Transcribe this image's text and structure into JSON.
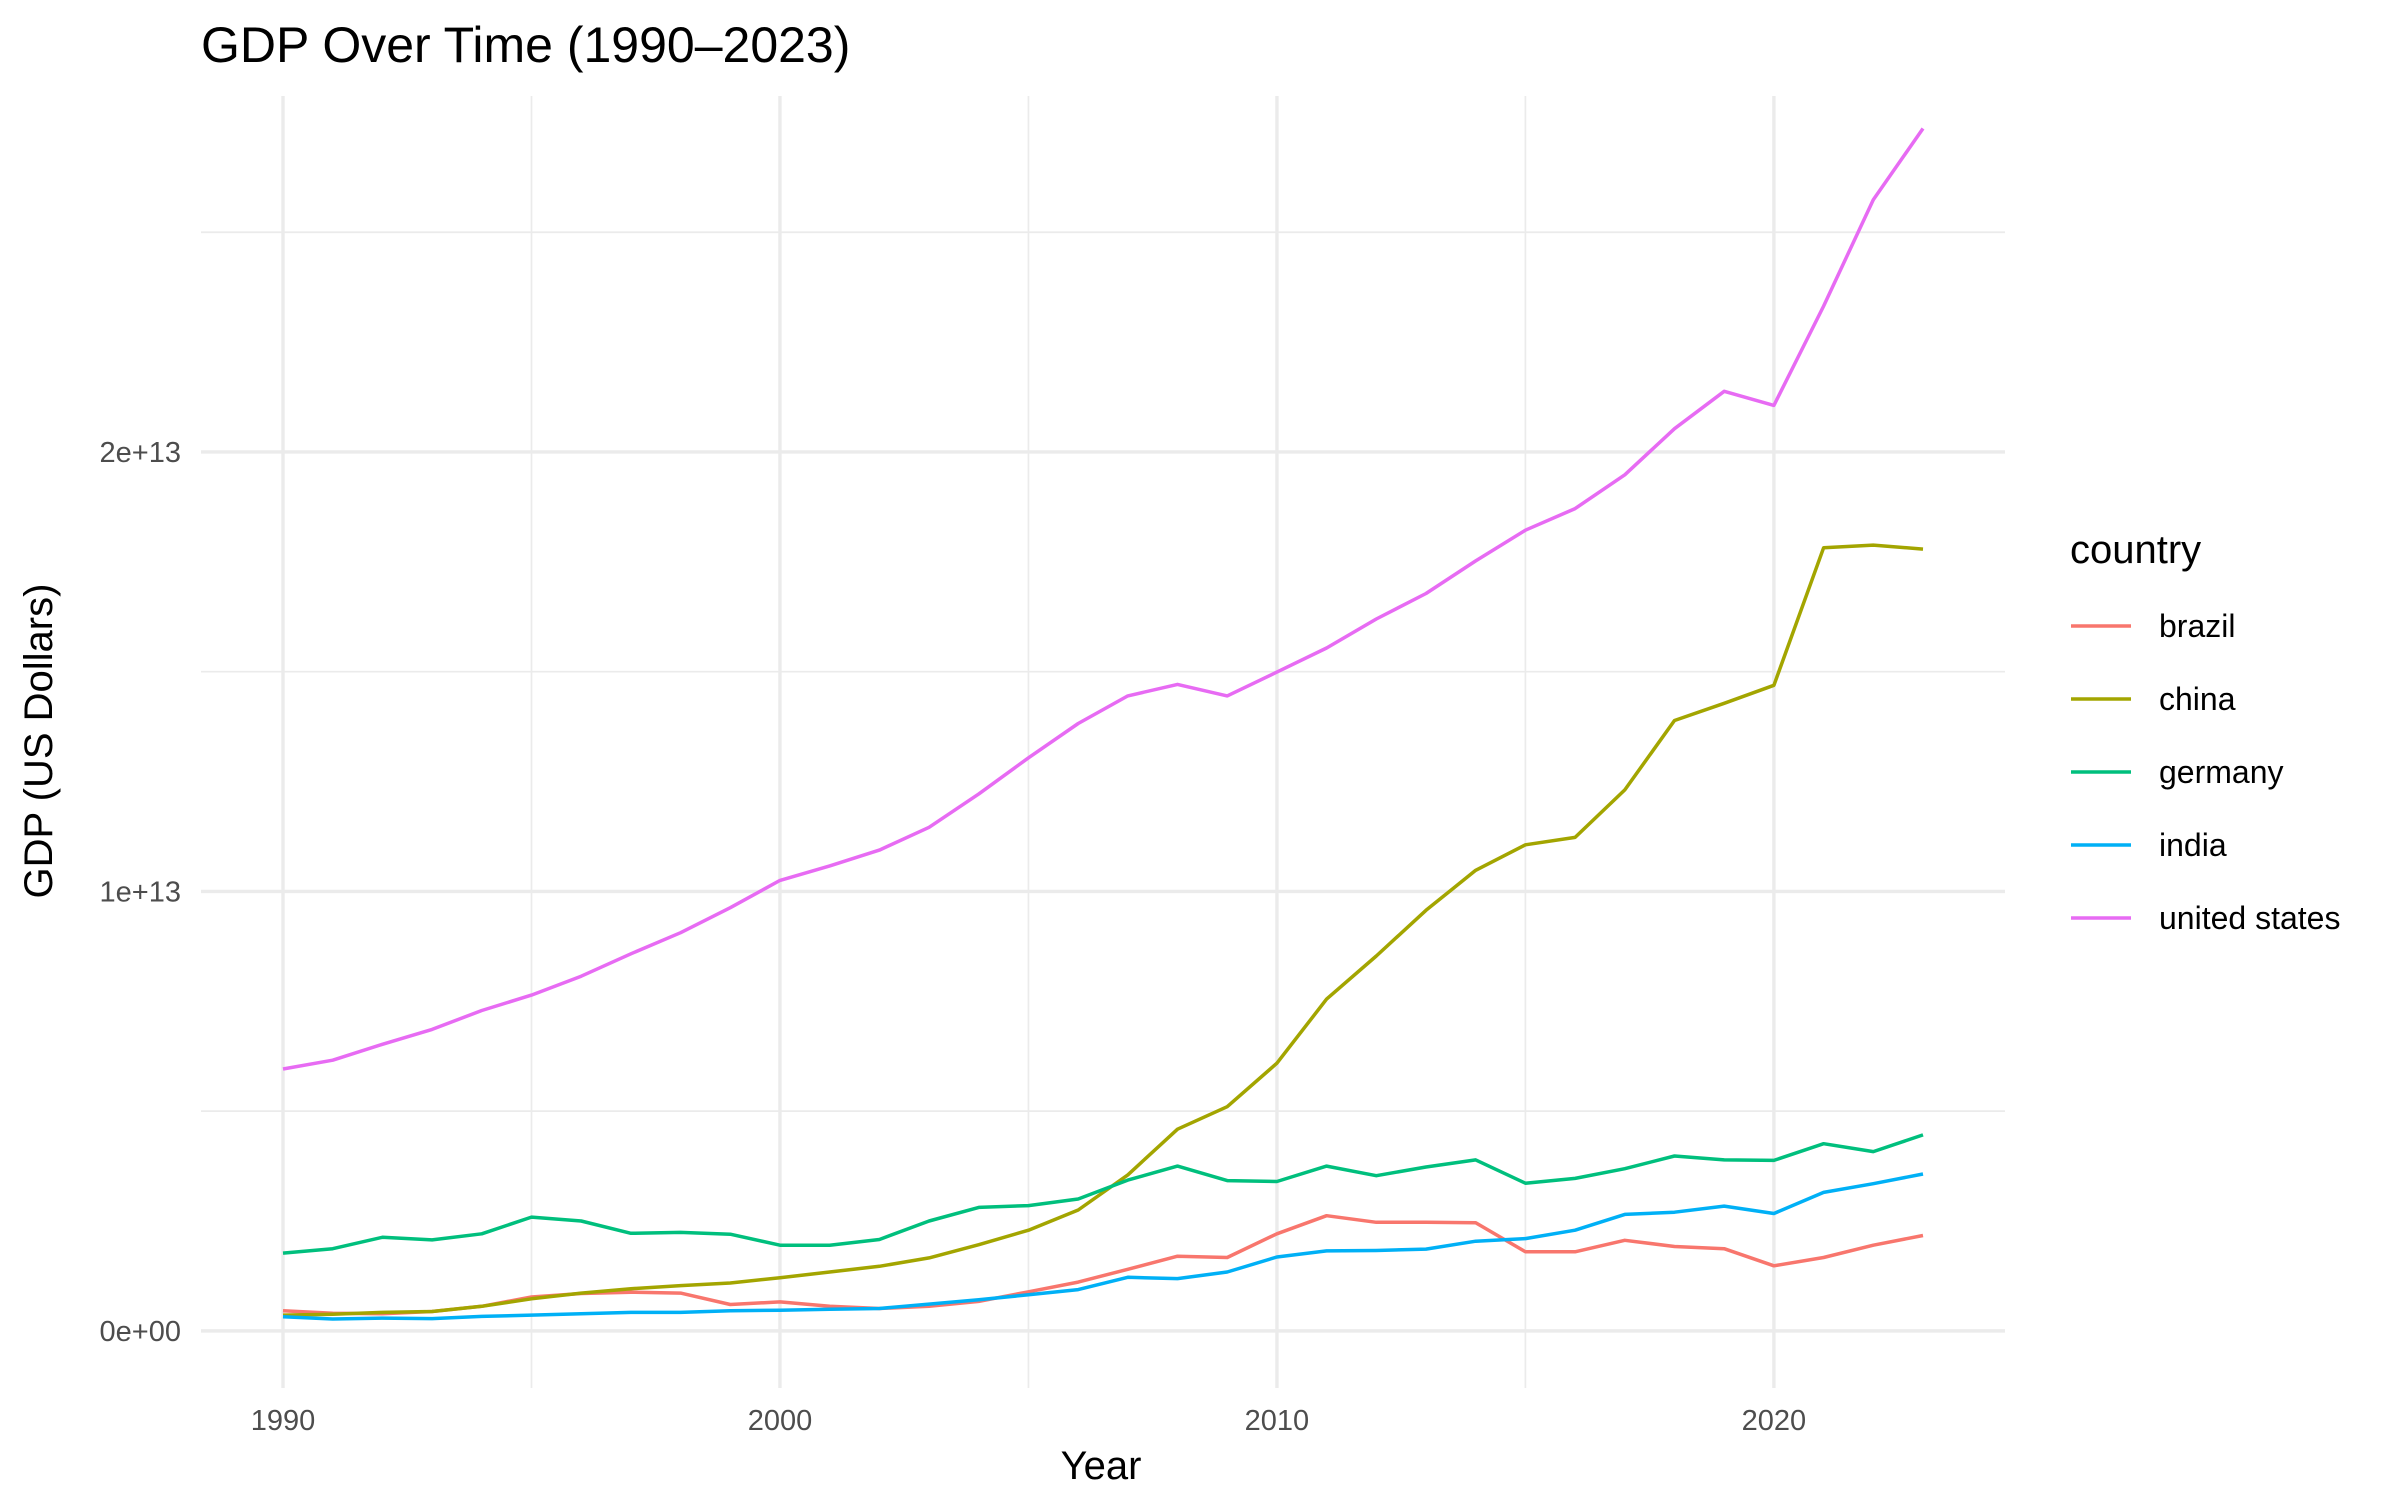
{
  "chart_data": {
    "type": "line",
    "title": "GDP Over Time (1990–2023)",
    "xlabel": "Year",
    "ylabel": "GDP (US Dollars)",
    "xlim": [
      1988.35,
      2024.65
    ],
    "ylim": [
      -1300000000000.0,
      28100000000000.0
    ],
    "x_ticks": [
      1990,
      2000,
      2010,
      2020
    ],
    "x_tick_labels": [
      "1990",
      "2000",
      "2010",
      "2020"
    ],
    "x_minor": [
      1995,
      2005,
      2015
    ],
    "y_ticks": [
      0,
      10000000000000.0,
      20000000000000.0
    ],
    "y_tick_labels": [
      "0e+00",
      "1e+13",
      "2e+13"
    ],
    "y_minor": [
      5000000000000.0,
      15000000000000.0,
      25000000000000.0
    ],
    "grid": true,
    "legend": {
      "title": "country",
      "position": "right"
    },
    "x": [
      1990,
      1991,
      1992,
      1993,
      1994,
      1995,
      1996,
      1997,
      1998,
      1999,
      2000,
      2001,
      2002,
      2003,
      2004,
      2005,
      2006,
      2007,
      2008,
      2009,
      2010,
      2011,
      2012,
      2013,
      2014,
      2015,
      2016,
      2017,
      2018,
      2019,
      2020,
      2021,
      2022,
      2023
    ],
    "series": [
      {
        "name": "brazil",
        "color": "#F8766D",
        "values": [
          460000000000.0,
          400000000000.0,
          390000000000.0,
          440000000000.0,
          560000000000.0,
          770000000000.0,
          850000000000.0,
          880000000000.0,
          860000000000.0,
          600000000000.0,
          660000000000.0,
          560000000000.0,
          510000000000.0,
          560000000000.0,
          670000000000.0,
          890000000000.0,
          1110000000000.0,
          1400000000000.0,
          1700000000000.0,
          1670000000000.0,
          2210000000000.0,
          2620000000000.0,
          2470000000000.0,
          2470000000000.0,
          2460000000000.0,
          1800000000000.0,
          1800000000000.0,
          2060000000000.0,
          1920000000000.0,
          1870000000000.0,
          1480000000000.0,
          1670000000000.0,
          1950000000000.0,
          2170000000000.0
        ]
      },
      {
        "name": "china",
        "color": "#A3A500",
        "values": [
          360000000000.0,
          380000000000.0,
          420000000000.0,
          440000000000.0,
          560000000000.0,
          730000000000.0,
          860000000000.0,
          960000000000.0,
          1030000000000.0,
          1090000000000.0,
          1210000000000.0,
          1340000000000.0,
          1470000000000.0,
          1660000000000.0,
          1960000000000.0,
          2290000000000.0,
          2750000000000.0,
          3550000000000.0,
          4590000000000.0,
          5100000000000.0,
          6090000000000.0,
          7550000000000.0,
          8530000000000.0,
          9570000000000.0,
          10480000000000.0,
          11060000000000.0,
          11230000000000.0,
          12310000000000.0,
          13890000000000.0,
          14280000000000.0,
          14690000000000.0,
          17820000000000.0,
          17880000000000.0,
          17790000000000.0
        ]
      },
      {
        "name": "germany",
        "color": "#00BF7D",
        "values": [
          1770000000000.0,
          1870000000000.0,
          2130000000000.0,
          2070000000000.0,
          2210000000000.0,
          2590000000000.0,
          2500000000000.0,
          2220000000000.0,
          2240000000000.0,
          2200000000000.0,
          1950000000000.0,
          1950000000000.0,
          2080000000000.0,
          2500000000000.0,
          2810000000000.0,
          2850000000000.0,
          3000000000000.0,
          3430000000000.0,
          3750000000000.0,
          3420000000000.0,
          3400000000000.0,
          3750000000000.0,
          3530000000000.0,
          3730000000000.0,
          3890000000000.0,
          3360000000000.0,
          3470000000000.0,
          3690000000000.0,
          3980000000000.0,
          3890000000000.0,
          3880000000000.0,
          4260000000000.0,
          4080000000000.0,
          4460000000000.0
        ]
      },
      {
        "name": "india",
        "color": "#00B0F6",
        "values": [
          320000000000.0,
          270000000000.0,
          290000000000.0,
          280000000000.0,
          330000000000.0,
          360000000000.0,
          390000000000.0,
          420000000000.0,
          420000000000.0,
          460000000000.0,
          470000000000.0,
          490000000000.0,
          510000000000.0,
          610000000000.0,
          710000000000.0,
          820000000000.0,
          940000000000.0,
          1220000000000.0,
          1190000000000.0,
          1340000000000.0,
          1680000000000.0,
          1820000000000.0,
          1830000000000.0,
          1860000000000.0,
          2040000000000.0,
          2100000000000.0,
          2290000000000.0,
          2650000000000.0,
          2700000000000.0,
          2840000000000.0,
          2670000000000.0,
          3150000000000.0,
          3350000000000.0,
          3570000000000.0
        ]
      },
      {
        "name": "united states",
        "color": "#E76BF3",
        "values": [
          5960000000000.0,
          6160000000000.0,
          6520000000000.0,
          6860000000000.0,
          7290000000000.0,
          7640000000000.0,
          8070000000000.0,
          8580000000000.0,
          9060000000000.0,
          9630000000000.0,
          10250000000000.0,
          10580000000000.0,
          10940000000000.0,
          11460000000000.0,
          12220000000000.0,
          13040000000000.0,
          13820000000000.0,
          14450000000000.0,
          14710000000000.0,
          14450000000000.0,
          14990000000000.0,
          15540000000000.0,
          16200000000000.0,
          16780000000000.0,
          17520000000000.0,
          18220000000000.0,
          18710000000000.0,
          19480000000000.0,
          20530000000000.0,
          21380000000000.0,
          21060000000000.0,
          23320000000000.0,
          25740000000000.0,
          27360000000000.0
        ]
      }
    ]
  }
}
